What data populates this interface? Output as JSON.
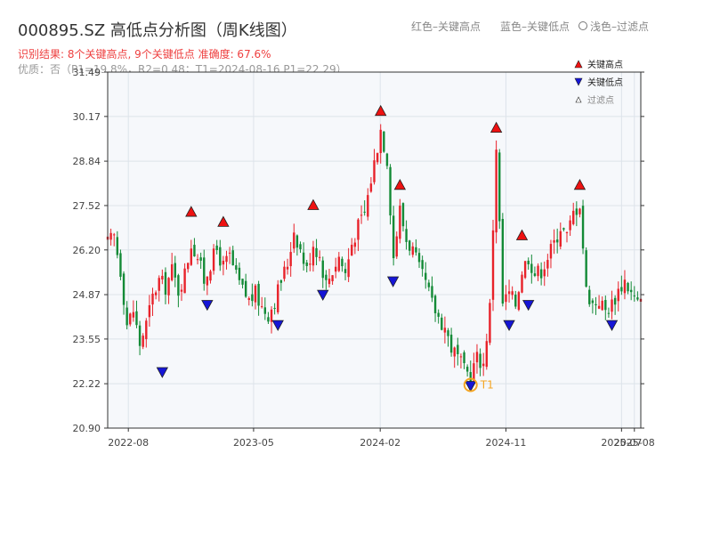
{
  "title": "000895.SZ 高低点分析图（周K线图）",
  "subtitle": "识别结果: 8个关键高点, 9个关键低点  准确度: 67.6%",
  "quality": "优质：否（P1=19.8%，R2=0.48；T1=2024-08-16 P1=22.29）",
  "header_legend": {
    "red": "红色–关键高点",
    "blue": "蓝色–关键低点",
    "grey": "浅色–过滤点"
  },
  "colors": {
    "up": "#e8222a",
    "down": "#138a36",
    "high_marker": "#ee1111",
    "low_marker": "#1515d6",
    "t1": "#f5a623",
    "title": "#333333",
    "subtitle": "#ee3f3f",
    "plot_bg": "#f6f8fb",
    "grid": "#dde3ea"
  },
  "chart_data": {
    "type": "candlestick",
    "frequency": "weekly",
    "x_range": [
      "2022-06-17",
      "2025-08-22"
    ],
    "ylim": [
      20.9,
      31.49
    ],
    "y_ticks": [
      "20.90",
      "22.22",
      "23.55",
      "24.87",
      "26.20",
      "27.52",
      "28.84",
      "30.17",
      "31.49"
    ],
    "x_ticks": [
      {
        "date": "2022-08-01",
        "label": "2022-08"
      },
      {
        "date": "2023-05-01",
        "label": "2023-05"
      },
      {
        "date": "2024-02-01",
        "label": "2024-02"
      },
      {
        "date": "2024-11-01",
        "label": "2024-11"
      },
      {
        "date": "2025-07-11",
        "label": "2025-07"
      },
      {
        "date": "2025-08-08",
        "label": "2025-08"
      }
    ],
    "close_path": [
      [
        "2022-06-17",
        26.4
      ],
      [
        "2022-07-01",
        26.6
      ],
      [
        "2022-07-15",
        25.6
      ],
      [
        "2022-07-29",
        24.0
      ],
      [
        "2022-08-12",
        24.4
      ],
      [
        "2022-08-26",
        23.4
      ],
      [
        "2022-09-09",
        24.0
      ],
      [
        "2022-09-23",
        24.8
      ],
      [
        "2022-10-07",
        25.3
      ],
      [
        "2022-10-21",
        25.1
      ],
      [
        "2022-11-04",
        25.6
      ],
      [
        "2022-11-18",
        25.0
      ],
      [
        "2022-12-02",
        25.5
      ],
      [
        "2022-12-16",
        26.4
      ],
      [
        "2022-12-30",
        26.0
      ],
      [
        "2023-01-13",
        25.3
      ],
      [
        "2023-01-27",
        25.8
      ],
      [
        "2023-02-10",
        26.2
      ],
      [
        "2023-02-24",
        25.7
      ],
      [
        "2023-03-10",
        26.0
      ],
      [
        "2023-03-24",
        25.4
      ],
      [
        "2023-04-07",
        25.0
      ],
      [
        "2023-04-21",
        24.7
      ],
      [
        "2023-05-05",
        24.9
      ],
      [
        "2023-05-19",
        24.5
      ],
      [
        "2023-06-02",
        24.3
      ],
      [
        "2023-06-16",
        24.7
      ],
      [
        "2023-06-30",
        25.3
      ],
      [
        "2023-07-14",
        25.8
      ],
      [
        "2023-07-28",
        26.8
      ],
      [
        "2023-08-11",
        26.2
      ],
      [
        "2023-08-25",
        25.6
      ],
      [
        "2023-09-08",
        26.4
      ],
      [
        "2023-09-22",
        26.0
      ],
      [
        "2023-10-06",
        25.2
      ],
      [
        "2023-10-20",
        25.6
      ],
      [
        "2023-11-03",
        26.0
      ],
      [
        "2023-11-17",
        25.5
      ],
      [
        "2023-12-01",
        26.4
      ],
      [
        "2023-12-15",
        26.9
      ],
      [
        "2023-12-29",
        27.3
      ],
      [
        "2024-01-12",
        28.3
      ],
      [
        "2024-01-26",
        29.3
      ],
      [
        "2024-02-02",
        29.8
      ],
      [
        "2024-02-16",
        28.9
      ],
      [
        "2024-03-01",
        26.0
      ],
      [
        "2024-03-15",
        27.4
      ],
      [
        "2024-03-29",
        26.5
      ],
      [
        "2024-04-12",
        26.2
      ],
      [
        "2024-04-26",
        25.6
      ],
      [
        "2024-05-10",
        25.2
      ],
      [
        "2024-05-24",
        24.6
      ],
      [
        "2024-06-07",
        24.2
      ],
      [
        "2024-06-21",
        23.9
      ],
      [
        "2024-07-05",
        23.3
      ],
      [
        "2024-07-19",
        23.0
      ],
      [
        "2024-08-02",
        22.6
      ],
      [
        "2024-08-16",
        22.5
      ],
      [
        "2024-08-30",
        23.0
      ],
      [
        "2024-09-13",
        22.8
      ],
      [
        "2024-09-27",
        24.5
      ],
      [
        "2024-10-11",
        29.3
      ],
      [
        "2024-10-25",
        24.6
      ],
      [
        "2024-11-08",
        24.9
      ],
      [
        "2024-11-22",
        24.6
      ],
      [
        "2024-12-06",
        25.6
      ],
      [
        "2024-12-20",
        26.0
      ],
      [
        "2025-01-03",
        25.5
      ],
      [
        "2025-01-17",
        25.6
      ],
      [
        "2025-01-31",
        26.0
      ],
      [
        "2025-02-14",
        26.4
      ],
      [
        "2025-02-28",
        26.9
      ],
      [
        "2025-03-14",
        26.6
      ],
      [
        "2025-03-28",
        27.3
      ],
      [
        "2025-04-11",
        27.6
      ],
      [
        "2025-04-25",
        25.0
      ],
      [
        "2025-05-09",
        24.6
      ],
      [
        "2025-05-23",
        24.7
      ],
      [
        "2025-06-06",
        24.4
      ],
      [
        "2025-06-20",
        24.6
      ],
      [
        "2025-07-04",
        25.0
      ],
      [
        "2025-07-18",
        25.3
      ],
      [
        "2025-08-01",
        24.9
      ],
      [
        "2025-08-15",
        24.6
      ]
    ],
    "key_highs": [
      {
        "date": "2022-12-16",
        "price": 27.2
      },
      {
        "date": "2023-02-24",
        "price": 26.9
      },
      {
        "date": "2023-09-08",
        "price": 27.4
      },
      {
        "date": "2024-02-02",
        "price": 30.2
      },
      {
        "date": "2024-03-15",
        "price": 28.0
      },
      {
        "date": "2024-10-11",
        "price": 29.7
      },
      {
        "date": "2024-12-06",
        "price": 26.5
      },
      {
        "date": "2025-04-11",
        "price": 28.0
      }
    ],
    "key_lows": [
      {
        "date": "2022-10-14",
        "price": 22.7
      },
      {
        "date": "2023-01-20",
        "price": 24.7
      },
      {
        "date": "2023-06-23",
        "price": 24.1
      },
      {
        "date": "2023-09-29",
        "price": 25.0
      },
      {
        "date": "2024-02-29",
        "price": 25.4
      },
      {
        "date": "2024-08-16",
        "price": 22.29,
        "label": "T1"
      },
      {
        "date": "2024-11-08",
        "price": 24.1
      },
      {
        "date": "2024-12-20",
        "price": 24.7
      },
      {
        "date": "2025-06-20",
        "price": 24.1
      }
    ],
    "legend": {
      "position": "top-right",
      "items": [
        "关键高点",
        "关键低点",
        "过滤点"
      ]
    },
    "grid": true
  }
}
